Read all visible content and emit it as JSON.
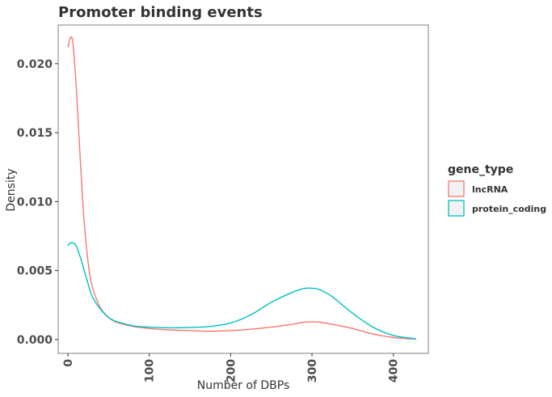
{
  "chart_data": {
    "type": "line",
    "title": "Promoter binding events",
    "xlabel": "Number of DBPs",
    "ylabel": "Density",
    "xlim": [
      -12,
      443
    ],
    "ylim": [
      -0.001,
      0.0228
    ],
    "x_ticks": [
      0,
      100,
      200,
      300,
      400
    ],
    "y_ticks": [
      0.0,
      0.005,
      0.01,
      0.015,
      0.02
    ],
    "y_tick_labels": [
      "0.000",
      "0.005",
      "0.010",
      "0.015",
      "0.020"
    ],
    "x_tick_labels": [
      "0",
      "100",
      "200",
      "300",
      "400"
    ],
    "grid": false,
    "legend": {
      "title": "gene_type",
      "position": "right"
    },
    "series": [
      {
        "name": "lncRNA",
        "color": "#F8766D",
        "x": [
          0,
          3,
          6,
          10,
          15,
          20,
          25,
          30,
          40,
          50,
          60,
          80,
          100,
          125,
          150,
          175,
          200,
          225,
          250,
          275,
          290,
          300,
          310,
          325,
          350,
          375,
          400,
          428
        ],
        "y": [
          0.0212,
          0.0219,
          0.0215,
          0.0185,
          0.0132,
          0.0085,
          0.0055,
          0.0038,
          0.0023,
          0.0016,
          0.00125,
          0.00095,
          0.0008,
          0.0007,
          0.00065,
          0.0006,
          0.00065,
          0.00075,
          0.0009,
          0.0011,
          0.00125,
          0.00128,
          0.00125,
          0.0011,
          0.0008,
          0.0004,
          0.00015,
          3e-05
        ]
      },
      {
        "name": "protein_coding",
        "color": "#00BFC4",
        "x": [
          0,
          3,
          6,
          10,
          15,
          20,
          25,
          30,
          40,
          50,
          60,
          80,
          100,
          125,
          150,
          175,
          200,
          225,
          250,
          275,
          290,
          300,
          310,
          325,
          350,
          375,
          400,
          428
        ],
        "y": [
          0.0068,
          0.007,
          0.007,
          0.0068,
          0.006,
          0.005,
          0.004,
          0.0031,
          0.0022,
          0.0016,
          0.0013,
          0.001,
          0.0009,
          0.00085,
          0.00087,
          0.00095,
          0.0012,
          0.0018,
          0.0027,
          0.0034,
          0.0037,
          0.00372,
          0.0036,
          0.0031,
          0.0019,
          0.0009,
          0.0003,
          5e-05
        ]
      }
    ]
  }
}
